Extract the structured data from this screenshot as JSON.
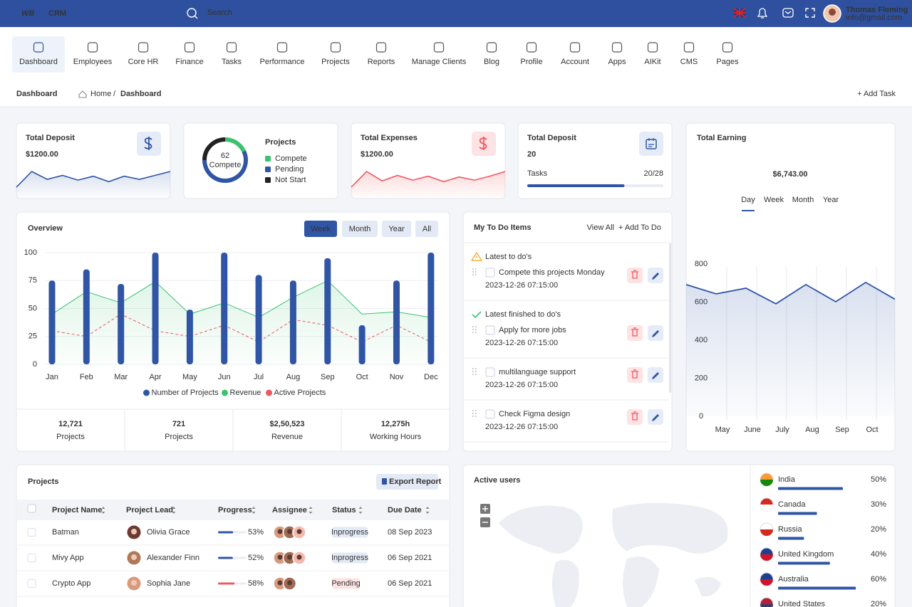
{
  "header": {
    "logo": "WB",
    "brand": "CRM",
    "search": "Search",
    "user_name": "Thomas Fleming",
    "user_email": "info@gmail.com"
  },
  "nav": {
    "items": [
      "Dashboard",
      "Employees",
      "Core HR",
      "Finance",
      "Tasks",
      "Performance",
      "Projects",
      "Reports",
      "Manage Clients",
      "Blog",
      "Profile",
      "Account",
      "Apps",
      "AIKit",
      "CMS",
      "Pages"
    ],
    "active": 0
  },
  "breadcrumb": {
    "title": "Dashboard",
    "home": "Home",
    "separator": "/",
    "current": "Dashboard",
    "action": "+ Add Task"
  },
  "deposit_card": {
    "title": "Total Deposit",
    "amount": "$1200.00",
    "sparkline": [
      18,
      38,
      28,
      33,
      27,
      32,
      25,
      32,
      28,
      33,
      38
    ]
  },
  "projects_card": {
    "title": "Projects",
    "center_value": 62,
    "center_label": "Compete",
    "segments": [
      {
        "name": "Compete",
        "color": "#3cc26f",
        "value": 18
      },
      {
        "name": "Pending",
        "color": "#2f55a4",
        "value": 57
      },
      {
        "name": "Not Start",
        "color": "#222222",
        "value": 25
      }
    ]
  },
  "expenses_card": {
    "title": "Total Expenses",
    "amount": "$1200.00",
    "sparkline": [
      18,
      38,
      26,
      33,
      27,
      32,
      25,
      31,
      27,
      32,
      38
    ]
  },
  "tasks_card": {
    "title": "Total Deposit",
    "count": 20,
    "tasks_label": "Tasks",
    "tasks": {
      "value": 20,
      "max": 28,
      "label": "20/28"
    }
  },
  "earning_card": {
    "title": "Total Earning",
    "amount": "$6,743.00",
    "tabs": [
      "Day",
      "Week",
      "Month",
      "Year"
    ],
    "active_tab": 0,
    "chart": {
      "type": "line",
      "categories": [
        null,
        "May",
        "June",
        "July",
        "Aug",
        "Sep",
        "Oct",
        null
      ],
      "values": [
        692,
        643,
        673,
        591,
        692,
        602,
        703,
        613
      ],
      "color": "#2f55a4",
      "ylim": [
        0,
        800
      ],
      "yticks": [
        0,
        200,
        400,
        600,
        800
      ]
    }
  },
  "overview": {
    "title": "Overview",
    "tabs": [
      "Week",
      "Month",
      "Year",
      "All"
    ],
    "active_tab": 0,
    "chart": {
      "type": "bar",
      "categories": [
        "Jan",
        "Feb",
        "Mar",
        "Apr",
        "May",
        "Jun",
        "Jul",
        "Aug",
        "Sep",
        "Oct",
        "Nov",
        "Dec"
      ],
      "series": [
        {
          "name": "Number of Projects",
          "type": "bar",
          "color": "#2f55a4",
          "values": [
            75,
            85,
            72,
            100,
            49,
            100,
            80,
            75,
            95,
            35,
            75,
            100
          ]
        },
        {
          "name": "Revenue",
          "type": "area",
          "color": "#3cc26f",
          "values": [
            45,
            65,
            55,
            74,
            45,
            55,
            42,
            60,
            75,
            45,
            47,
            42
          ]
        },
        {
          "name": "Active Projects",
          "type": "line",
          "dashed": true,
          "color": "#f0575f",
          "values": [
            30,
            25,
            45,
            30,
            25,
            35,
            20,
            40,
            35,
            20,
            35,
            20
          ]
        }
      ],
      "ylim": [
        0,
        100
      ],
      "yticks": [
        0,
        25,
        50,
        75,
        100
      ]
    },
    "stats": [
      {
        "value": "12,721",
        "label": "Projects",
        "color": "#222222"
      },
      {
        "value": "721",
        "label": "Projects",
        "color": "#2f55a4"
      },
      {
        "value": "$2,50,523",
        "label": "Revenue",
        "color": "#222222"
      },
      {
        "value": "12,275h",
        "label": "Working Hours",
        "color": "#3cc26f"
      }
    ]
  },
  "todo": {
    "title": "My To Do Items",
    "view_all": "View All",
    "add": "+ Add To Do",
    "sections": [
      {
        "title": "Latest to do's",
        "status": "pending",
        "items": [
          {
            "text": "Compete this projects Monday",
            "date": "2023-12-26 07:15:00"
          }
        ]
      },
      {
        "title": "Latest finished to do's",
        "status": "done",
        "items": [
          {
            "text": "Apply for more jobs",
            "date": "2023-12-26 07:15:00"
          },
          {
            "text": "multilanguage support",
            "date": "2023-12-26 07:15:00"
          },
          {
            "text": "Check Figma design",
            "date": "2023-12-26 07:15:00"
          }
        ]
      }
    ]
  },
  "projects_table": {
    "title": "Projects",
    "action": "Export Report",
    "columns": [
      "Project Name",
      "Project Lead",
      "Progress",
      "Assignee",
      "Status",
      "Due Date"
    ],
    "rows": [
      {
        "name": "Batman",
        "lead": "Olivia Grace",
        "progress": {
          "value": 53,
          "label": "53%"
        },
        "status": "Inprogress",
        "due": "08 Sep 2023"
      },
      {
        "name": "Mivy App",
        "lead": "Alexander Finn",
        "progress": {
          "value": 52,
          "label": "52%"
        },
        "status": "Inprogress",
        "due": "06 Sep 2021"
      },
      {
        "name": "Crypto App",
        "lead": "Sophia Jane",
        "progress": {
          "value": 58,
          "label": "58%"
        },
        "status": "Pending",
        "due": "06 Sep 2021"
      }
    ]
  },
  "active_users": {
    "title": "Active users",
    "countries": [
      {
        "name": "India",
        "value": 50,
        "label": "50%"
      },
      {
        "name": "Canada",
        "value": 30,
        "label": "30%"
      },
      {
        "name": "Russia",
        "value": 20,
        "label": "20%"
      },
      {
        "name": "United Kingdom",
        "value": 40,
        "label": "40%"
      },
      {
        "name": "Australia",
        "value": 60,
        "label": "60%"
      },
      {
        "name": "United States",
        "value": 20,
        "label": "20%"
      }
    ]
  }
}
